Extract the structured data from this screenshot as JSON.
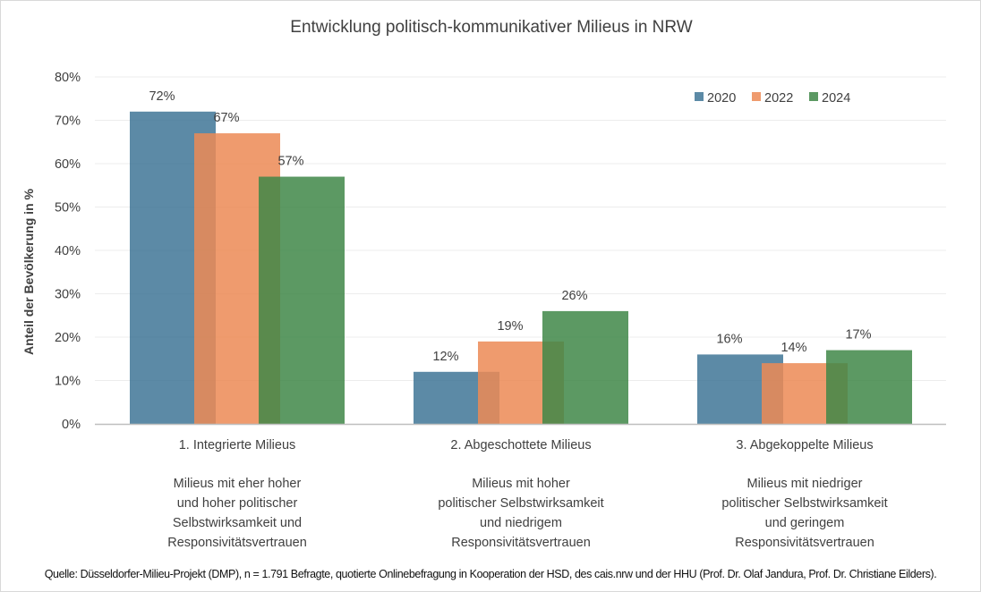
{
  "chart_data": {
    "type": "bar",
    "title": "Entwicklung politisch-kommunikativer Milieus in NRW",
    "ylabel": "Anteil der Bevölkerung in %",
    "xlabel": "",
    "ylim": [
      0,
      80
    ],
    "yticks": [
      "0%",
      "10%",
      "20%",
      "30%",
      "40%",
      "50%",
      "60%",
      "70%",
      "80%"
    ],
    "grid": true,
    "legend_position": "top-right",
    "categories": [
      "1. Integrierte Milieus",
      "2. Abgeschottete Milieus",
      "3. Abgekoppelte Milieus"
    ],
    "category_descriptions": [
      [
        "Milieus mit eher hoher",
        "und hoher politischer",
        "Selbstwirksamkeit und",
        "Responsivitätsvertrauen"
      ],
      [
        "Milieus mit hoher",
        "politischer Selbstwirksamkeit",
        "und niedrigem",
        "Responsivitätsvertrauen"
      ],
      [
        "Milieus mit niedriger",
        "politischer Selbstwirksamkeit",
        "und geringem",
        "Responsivitätsvertrauen"
      ]
    ],
    "series": [
      {
        "name": "2020",
        "color": "#3f7596",
        "values": [
          72,
          12,
          16
        ],
        "labels": [
          "72%",
          "12%",
          "16%"
        ]
      },
      {
        "name": "2022",
        "color": "#ec8a55",
        "values": [
          67,
          19,
          14
        ],
        "labels": [
          "67%",
          "19%",
          "14%"
        ]
      },
      {
        "name": "2024",
        "color": "#3f8748",
        "values": [
          57,
          26,
          17
        ],
        "labels": [
          "57%",
          "26%",
          "17%"
        ]
      }
    ]
  },
  "source": "Quelle: Düsseldorfer-Milieu-Projekt (DMP), n = 1.791 Befragte, quotierte Onlinebefragung in Kooperation der HSD, des cais.nrw und der HHU (Prof. Dr. Olaf Jandura, Prof. Dr. Christiane Eilders)."
}
